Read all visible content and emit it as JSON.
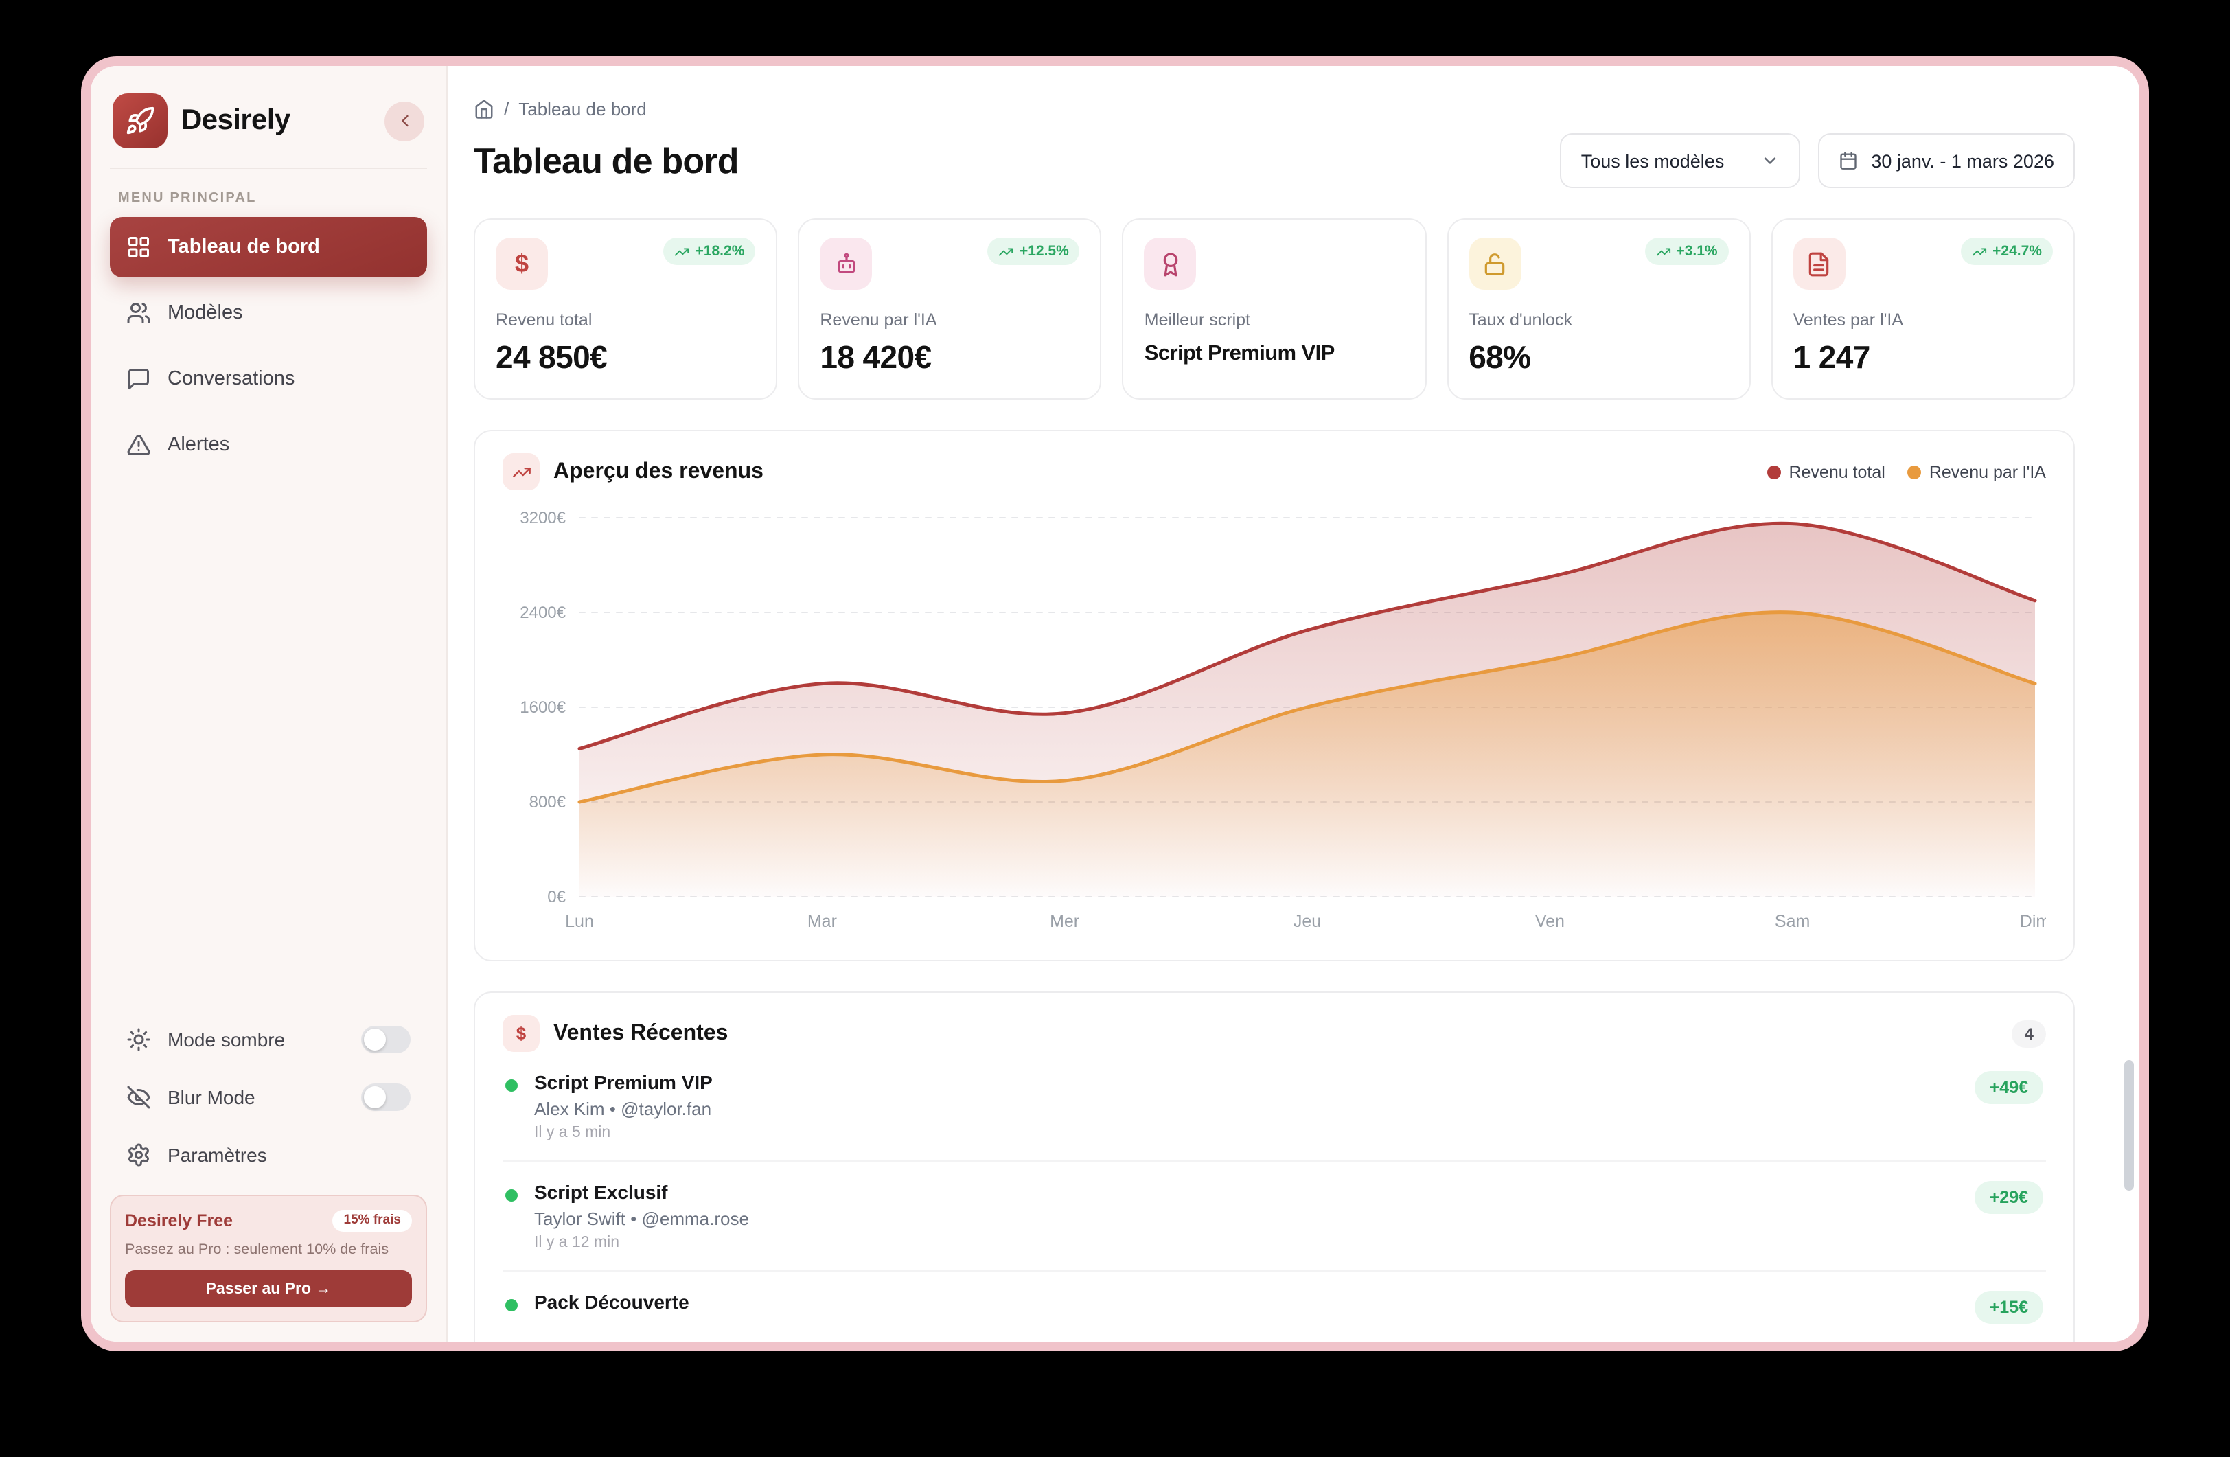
{
  "sidebar": {
    "brand": "Desirely",
    "section_label": "MENU PRINCIPAL",
    "menu": [
      {
        "label": "Tableau de bord",
        "active": true
      },
      {
        "label": "Modèles",
        "active": false
      },
      {
        "label": "Conversations",
        "active": false
      },
      {
        "label": "Alertes",
        "active": false
      }
    ],
    "preferences": [
      {
        "label": "Mode sombre",
        "state": "off"
      },
      {
        "label": "Blur Mode",
        "state": "off"
      },
      {
        "label": "Paramètres"
      }
    ],
    "promo": {
      "title": "Desirely Free",
      "badge": "15% frais",
      "description": "Passez au Pro : seulement 10% de frais",
      "cta": "Passer au Pro →"
    }
  },
  "header": {
    "breadcrumb_sep": "/",
    "breadcrumb_page": "Tableau de bord",
    "title": "Tableau de bord",
    "model_filter": "Tous les modèles",
    "date_range": "30 janv. - 1 mars 2026"
  },
  "stats": [
    {
      "label": "Revenu total",
      "value": "24 850€",
      "delta": "+18.2%"
    },
    {
      "label": "Revenu par l'IA",
      "value": "18 420€",
      "delta": "+12.5%"
    },
    {
      "label": "Meilleur script",
      "value": "Script Premium VIP"
    },
    {
      "label": "Taux d'unlock",
      "value": "68%",
      "delta": "+3.1%"
    },
    {
      "label": "Ventes par l'IA",
      "value": "1 247",
      "delta": "+24.7%"
    }
  ],
  "chart_data": {
    "type": "area",
    "title": "Aperçu des revenus",
    "categories": [
      "Lun",
      "Mar",
      "Mer",
      "Jeu",
      "Ven",
      "Sam",
      "Dim"
    ],
    "series": [
      {
        "name": "Revenu total",
        "color": "#b23c3a",
        "values": [
          1250,
          1800,
          1550,
          2250,
          2700,
          3150,
          2500
        ]
      },
      {
        "name": "Revenu par l'IA",
        "color": "#e89a3e",
        "values": [
          800,
          1200,
          980,
          1600,
          2000,
          2400,
          1800
        ]
      }
    ],
    "ylim": [
      0,
      3200
    ],
    "yticks": [
      0,
      800,
      1600,
      2400,
      3200
    ],
    "ytick_labels": [
      "0€",
      "800€",
      "1600€",
      "2400€",
      "3200€"
    ],
    "grid": true,
    "legend_position": "top-right"
  },
  "recent_sales": {
    "title": "Ventes Récentes",
    "count": "4",
    "items": [
      {
        "title": "Script Premium VIP",
        "subtitle": "Alex Kim • @taylor.fan",
        "time": "Il y a 5 min",
        "amount": "+49€"
      },
      {
        "title": "Script Exclusif",
        "subtitle": "Taylor Swift • @emma.rose",
        "time": "Il y a 12 min",
        "amount": "+29€"
      },
      {
        "title": "Pack Découverte",
        "amount": "+15€"
      }
    ]
  },
  "glyphs": {
    "dollar": "$"
  },
  "colors": {
    "accent": "#9e3b38",
    "frame": "#f0c3ca",
    "positive": "#27a35d",
    "series_total": "#b23c3a",
    "series_ai": "#e89a3e"
  }
}
